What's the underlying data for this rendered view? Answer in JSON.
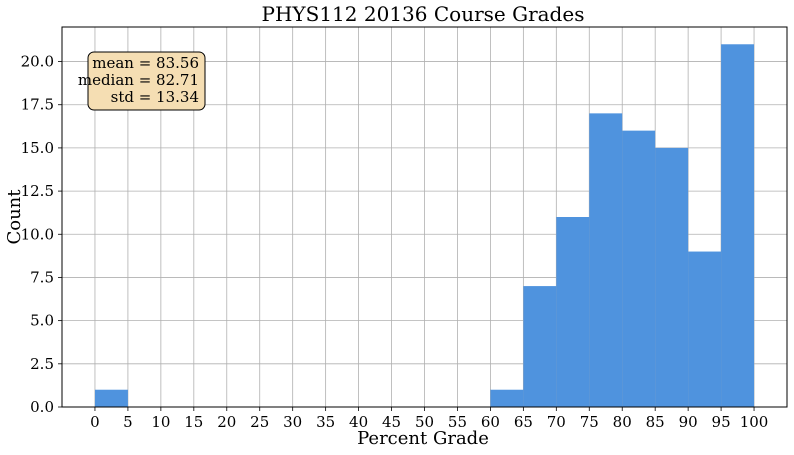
{
  "chart_data": {
    "type": "bar",
    "title": "PHYS112 20136 Course Grades",
    "xlabel": "Percent Grade",
    "ylabel": "Count",
    "bins": [
      {
        "start": 0,
        "end": 5,
        "count": 1
      },
      {
        "start": 5,
        "end": 10,
        "count": 0
      },
      {
        "start": 10,
        "end": 15,
        "count": 0
      },
      {
        "start": 15,
        "end": 20,
        "count": 0
      },
      {
        "start": 20,
        "end": 25,
        "count": 0
      },
      {
        "start": 25,
        "end": 30,
        "count": 0
      },
      {
        "start": 30,
        "end": 35,
        "count": 0
      },
      {
        "start": 35,
        "end": 40,
        "count": 0
      },
      {
        "start": 40,
        "end": 45,
        "count": 0
      },
      {
        "start": 45,
        "end": 50,
        "count": 0
      },
      {
        "start": 50,
        "end": 55,
        "count": 0
      },
      {
        "start": 55,
        "end": 60,
        "count": 0
      },
      {
        "start": 60,
        "end": 65,
        "count": 1
      },
      {
        "start": 65,
        "end": 70,
        "count": 7
      },
      {
        "start": 70,
        "end": 75,
        "count": 11
      },
      {
        "start": 75,
        "end": 80,
        "count": 17
      },
      {
        "start": 80,
        "end": 85,
        "count": 16
      },
      {
        "start": 85,
        "end": 90,
        "count": 15
      },
      {
        "start": 90,
        "end": 95,
        "count": 9
      },
      {
        "start": 95,
        "end": 100,
        "count": 21
      }
    ],
    "x_ticks": [
      "0",
      "5",
      "10",
      "15",
      "20",
      "25",
      "30",
      "35",
      "40",
      "45",
      "50",
      "55",
      "60",
      "65",
      "70",
      "75",
      "80",
      "85",
      "90",
      "95",
      "100"
    ],
    "y_ticks": [
      "0.0",
      "2.5",
      "5.0",
      "7.5",
      "10.0",
      "12.5",
      "15.0",
      "17.5",
      "20.0"
    ],
    "xlim": [
      -5,
      105
    ],
    "ylim": [
      0,
      22
    ],
    "grid": true,
    "bar_color": "#4f93de",
    "stats": {
      "lines": [
        "mean = 83.56",
        "median = 82.71",
        "std = 13.34"
      ],
      "box_color": "#f5deb3",
      "placement": "top-left"
    }
  }
}
